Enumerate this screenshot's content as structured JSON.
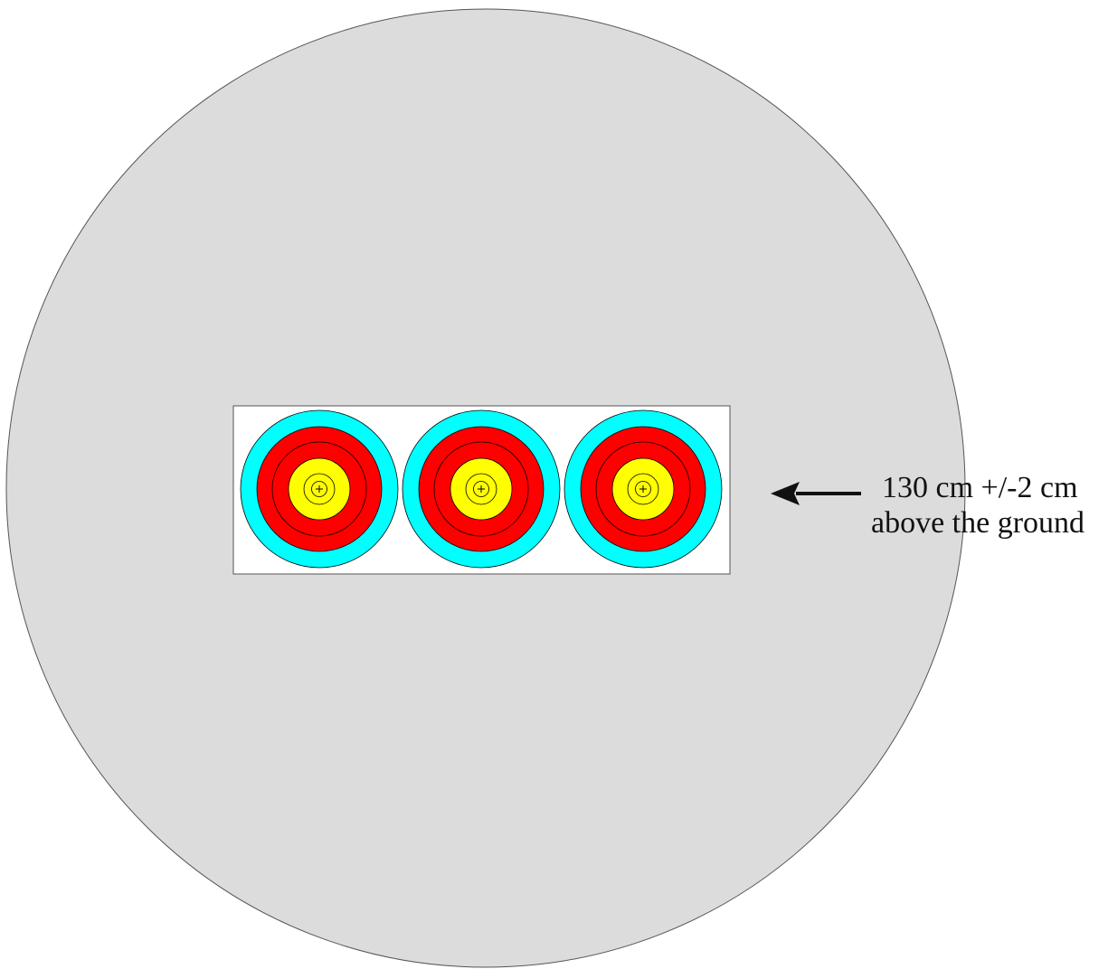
{
  "diagram": {
    "annotation": {
      "line1": "130 cm +/-2 cm",
      "line2": "above the ground"
    },
    "target_face_count": 3,
    "colors": {
      "boss": "#dcdcdc",
      "boss_outline": "#555555",
      "face_backing": "#ffffff",
      "ring_outline": "#000000",
      "blue_ring": "#00ffff",
      "red_ring": "#ff0000",
      "gold_ring": "#ffff00",
      "arrow": "#111111"
    },
    "icons": {
      "arrow": "left-arrow-icon",
      "center_mark": "crosshair-icon"
    }
  }
}
